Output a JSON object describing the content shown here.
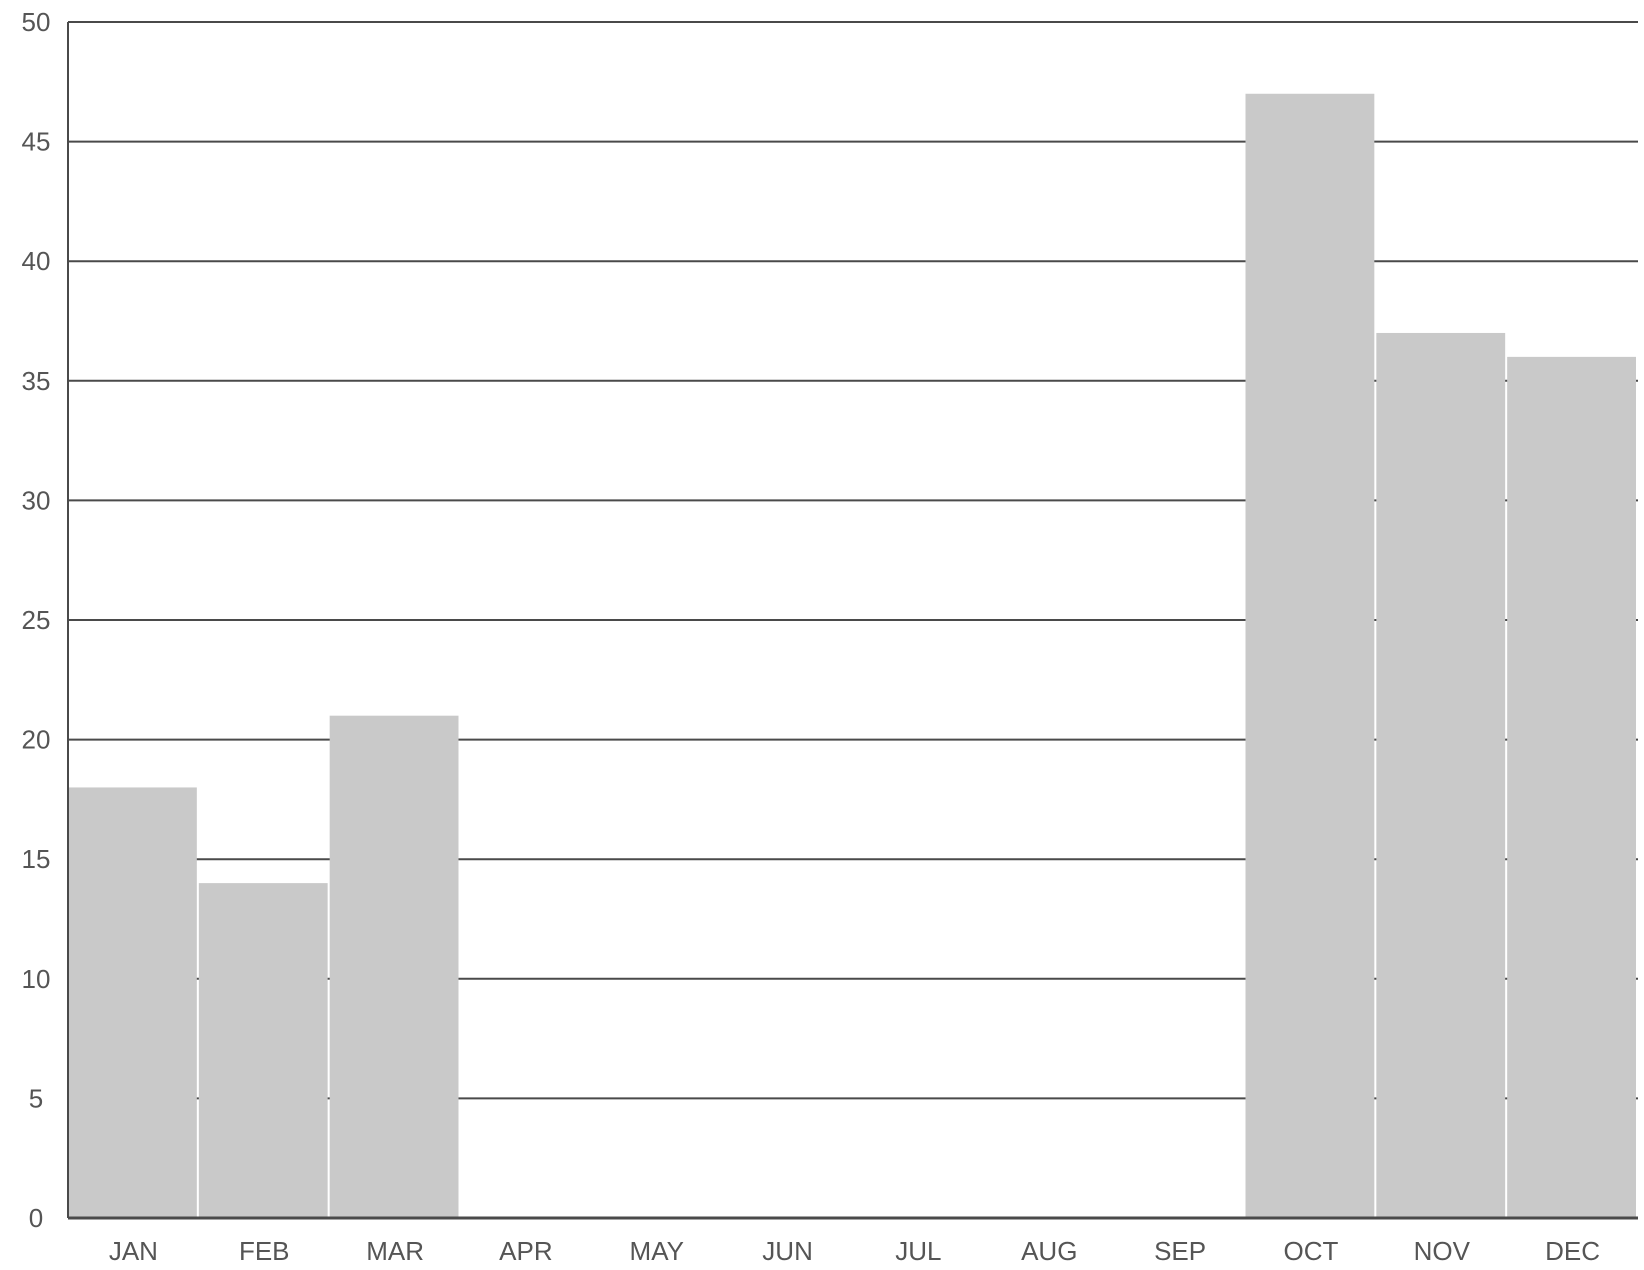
{
  "chart_data": {
    "type": "bar",
    "title": "",
    "xlabel": "",
    "ylabel": "",
    "categories": [
      "JAN",
      "FEB",
      "MAR",
      "APR",
      "MAY",
      "JUN",
      "JUL",
      "AUG",
      "SEP",
      "OCT",
      "NOV",
      "DEC"
    ],
    "values": [
      18,
      14,
      21,
      0,
      0,
      0,
      0,
      0,
      0,
      47,
      37,
      36
    ],
    "ylim": [
      0,
      50
    ],
    "yticks": [
      "0",
      "5",
      "10",
      "15",
      "20",
      "25",
      "30",
      "35",
      "40",
      "45",
      "50"
    ],
    "grid": true,
    "legend": "none",
    "colors": {
      "bar": "#c9c9c9",
      "gridline": "#4a4a4a",
      "axis": "#4a4a4a",
      "text": "#555555"
    }
  }
}
